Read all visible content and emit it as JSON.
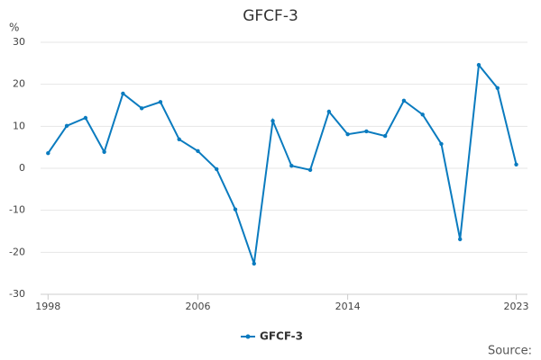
{
  "chart_data": {
    "type": "line",
    "title": "GFCF-3",
    "y_label": "%",
    "source": "Source:",
    "x": [
      1998,
      1999,
      2000,
      2001,
      2002,
      2003,
      2004,
      2005,
      2006,
      2007,
      2008,
      2009,
      2010,
      2011,
      2012,
      2013,
      2014,
      2015,
      2016,
      2017,
      2018,
      2019,
      2020,
      2021,
      2022,
      2023
    ],
    "series": [
      {
        "name": "GFCF-3",
        "color": "#0a7bbf",
        "values": [
          3.6,
          10.1,
          12.0,
          3.9,
          17.8,
          14.3,
          15.8,
          6.9,
          4.1,
          -0.2,
          -9.8,
          -22.7,
          11.3,
          0.6,
          -0.4,
          13.5,
          8.1,
          8.8,
          7.7,
          16.1,
          12.8,
          5.8,
          -16.9,
          24.6,
          19.1,
          0.9
        ]
      }
    ],
    "xlim": [
      1997.6,
      2023.6
    ],
    "xticks": [
      1998,
      2006,
      2014,
      2023
    ],
    "ylim": [
      -30,
      30
    ],
    "yticks": [
      -30,
      -20,
      -10,
      0,
      10,
      20,
      30
    ],
    "grid": true,
    "legend": "bottom"
  }
}
